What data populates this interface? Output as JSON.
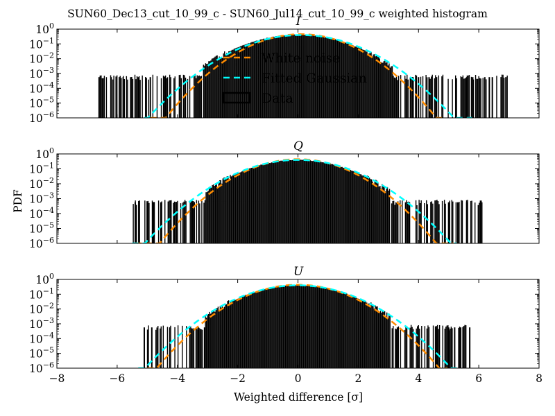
{
  "title": "SUN60_Dec13_cut_10_99_c - SUN60_Jul14_cut_10_99_c weighted histogram",
  "xlabel": "Weighted difference [σ]",
  "ylabel": "PDF",
  "colors": {
    "white_noise": "#ff8c00",
    "fitted_gaussian": "#00ffff",
    "data": "#000000"
  },
  "legend": {
    "placement": "upper-center (top panel)",
    "entries": [
      {
        "name": "White noise",
        "style": "dashed",
        "color": "#ff8c00"
      },
      {
        "name": "Fitted Gaussian",
        "style": "dashed",
        "color": "#00ffff"
      },
      {
        "name": "Data",
        "style": "step",
        "color": "#000000"
      }
    ]
  },
  "chart_data": [
    {
      "type": "histogram",
      "title": "I",
      "xlim": [
        -8,
        8
      ],
      "ylim": [
        1e-06,
        1
      ],
      "yscale": "log",
      "xticks": [
        -8,
        -6,
        -4,
        -2,
        0,
        2,
        4,
        6,
        8
      ],
      "xticklabels": [
        "−8",
        "−6",
        "−4",
        "−2",
        "0",
        "2",
        "4",
        "6",
        "8"
      ],
      "yticklabels": [
        {
          "base": "10",
          "exp": "0"
        },
        {
          "base": "10",
          "exp": "-1"
        },
        {
          "base": "10",
          "exp": "-2"
        },
        {
          "base": "10",
          "exp": "-3"
        },
        {
          "base": "10",
          "exp": "-4"
        },
        {
          "base": "10",
          "exp": "-5"
        },
        {
          "base": "10",
          "exp": "-6"
        }
      ],
      "series": [
        {
          "name": "White noise",
          "kind": "gaussian",
          "mean": 0.1,
          "sigma": 0.88,
          "x_range": [
            -4.9,
            4.9
          ]
        },
        {
          "name": "Fitted Gaussian",
          "kind": "gaussian",
          "mean": 0.1,
          "sigma": 1.0,
          "x_range": [
            -5.1,
            5.8
          ]
        },
        {
          "name": "Data",
          "kind": "histogram",
          "core_sigma": 1.0,
          "core_peak": 0.42,
          "x_range": [
            -6.6,
            7.0
          ],
          "sparse_floor": 0.0006,
          "spikes": [
            -6.6,
            -6.2,
            -5.8,
            -5.55,
            -5.3,
            -4.9,
            -4.4,
            4.0,
            4.35,
            4.6,
            5.6,
            5.8,
            6.2,
            6.35,
            6.45,
            6.9
          ]
        }
      ]
    },
    {
      "type": "histogram",
      "title": "Q",
      "xlim": [
        -8,
        8
      ],
      "ylim": [
        1e-06,
        1
      ],
      "yscale": "log",
      "xticks": [
        -8,
        -6,
        -4,
        -2,
        0,
        2,
        4,
        6,
        8
      ],
      "xticklabels": [
        "−8",
        "−6",
        "−4",
        "−2",
        "0",
        "2",
        "4",
        "6",
        "8"
      ],
      "yticklabels": [
        {
          "base": "10",
          "exp": "0"
        },
        {
          "base": "10",
          "exp": "-1"
        },
        {
          "base": "10",
          "exp": "-2"
        },
        {
          "base": "10",
          "exp": "-3"
        },
        {
          "base": "10",
          "exp": "-4"
        },
        {
          "base": "10",
          "exp": "-5"
        },
        {
          "base": "10",
          "exp": "-6"
        }
      ],
      "series": [
        {
          "name": "White noise",
          "kind": "gaussian",
          "mean": 0.0,
          "sigma": 0.9,
          "x_range": [
            -5.4,
            5.2
          ]
        },
        {
          "name": "Fitted Gaussian",
          "kind": "gaussian",
          "mean": 0.0,
          "sigma": 1.0,
          "x_range": [
            -5.5,
            5.3
          ]
        },
        {
          "name": "Data",
          "kind": "histogram",
          "core_sigma": 0.98,
          "core_peak": 0.4,
          "x_range": [
            -5.5,
            6.1
          ],
          "sparse_floor": 0.0006,
          "spikes": [
            -5.4,
            -5.0,
            -4.8,
            -4.55,
            -3.5,
            3.7,
            5.0,
            5.3,
            5.6,
            6.1
          ]
        }
      ]
    },
    {
      "type": "histogram",
      "title": "U",
      "xlim": [
        -8,
        8
      ],
      "ylim": [
        1e-06,
        1
      ],
      "yscale": "log",
      "xticks": [
        -8,
        -6,
        -4,
        -2,
        0,
        2,
        4,
        6,
        8
      ],
      "xticklabels": [
        "−8",
        "−6",
        "−4",
        "−2",
        "0",
        "2",
        "4",
        "6",
        "8"
      ],
      "yticklabels": [
        {
          "base": "10",
          "exp": "0"
        },
        {
          "base": "10",
          "exp": "-1"
        },
        {
          "base": "10",
          "exp": "-2"
        },
        {
          "base": "10",
          "exp": "-3"
        },
        {
          "base": "10",
          "exp": "-4"
        },
        {
          "base": "10",
          "exp": "-5"
        },
        {
          "base": "10",
          "exp": "-6"
        }
      ],
      "series": [
        {
          "name": "White noise",
          "kind": "gaussian",
          "mean": 0.0,
          "sigma": 0.92,
          "x_range": [
            -5.0,
            5.0
          ]
        },
        {
          "name": "Fitted Gaussian",
          "kind": "gaussian",
          "mean": 0.0,
          "sigma": 1.0,
          "x_range": [
            -5.3,
            5.4
          ]
        },
        {
          "name": "Data",
          "kind": "histogram",
          "core_sigma": 0.98,
          "core_peak": 0.41,
          "x_range": [
            -5.1,
            5.7
          ],
          "sparse_floor": 0.0006,
          "spikes": [
            -5.1,
            -4.85,
            -3.3,
            -3.1,
            3.3,
            4.6,
            5.0,
            5.2,
            5.4,
            5.7
          ]
        }
      ]
    }
  ]
}
